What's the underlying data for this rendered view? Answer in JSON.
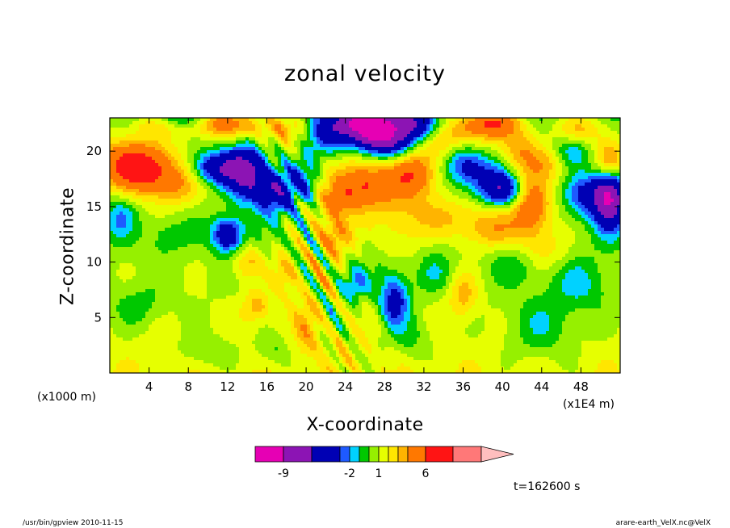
{
  "chart_data": {
    "type": "heatmap",
    "title": "zonal velocity",
    "xlabel": "X-coordinate",
    "ylabel": "Z-coordinate",
    "x_unit_left": "(x1000 m)",
    "x_unit_right": "(x1E4 m)",
    "xlim": [
      0,
      52
    ],
    "ylim": [
      0,
      23
    ],
    "xticks": [
      4,
      8,
      12,
      16,
      20,
      24,
      28,
      32,
      36,
      40,
      44,
      48
    ],
    "yticks": [
      5,
      10,
      15,
      20
    ],
    "colorbar": {
      "levels": [
        -12,
        -9,
        -6,
        -3,
        -2,
        -1,
        0,
        1,
        2,
        3,
        4,
        6,
        9,
        12
      ],
      "colors": [
        "#e600b4",
        "#8c14b4",
        "#0000b4",
        "#1e5aff",
        "#00d2ff",
        "#00c800",
        "#96f000",
        "#e6ff00",
        "#ffe600",
        "#ffb400",
        "#ff7800",
        "#ff1414",
        "#ff7878",
        "#ffbebe"
      ],
      "tick_values": [
        -9,
        -2,
        1,
        6
      ],
      "tick_labels": [
        "-9",
        "-2",
        "1",
        "6"
      ]
    },
    "annotation": "t=162600 s"
  },
  "footer": {
    "left": "/usr/bin/gpview   2010-11-15",
    "right": "arare-earth_VelX.nc@VelX"
  }
}
